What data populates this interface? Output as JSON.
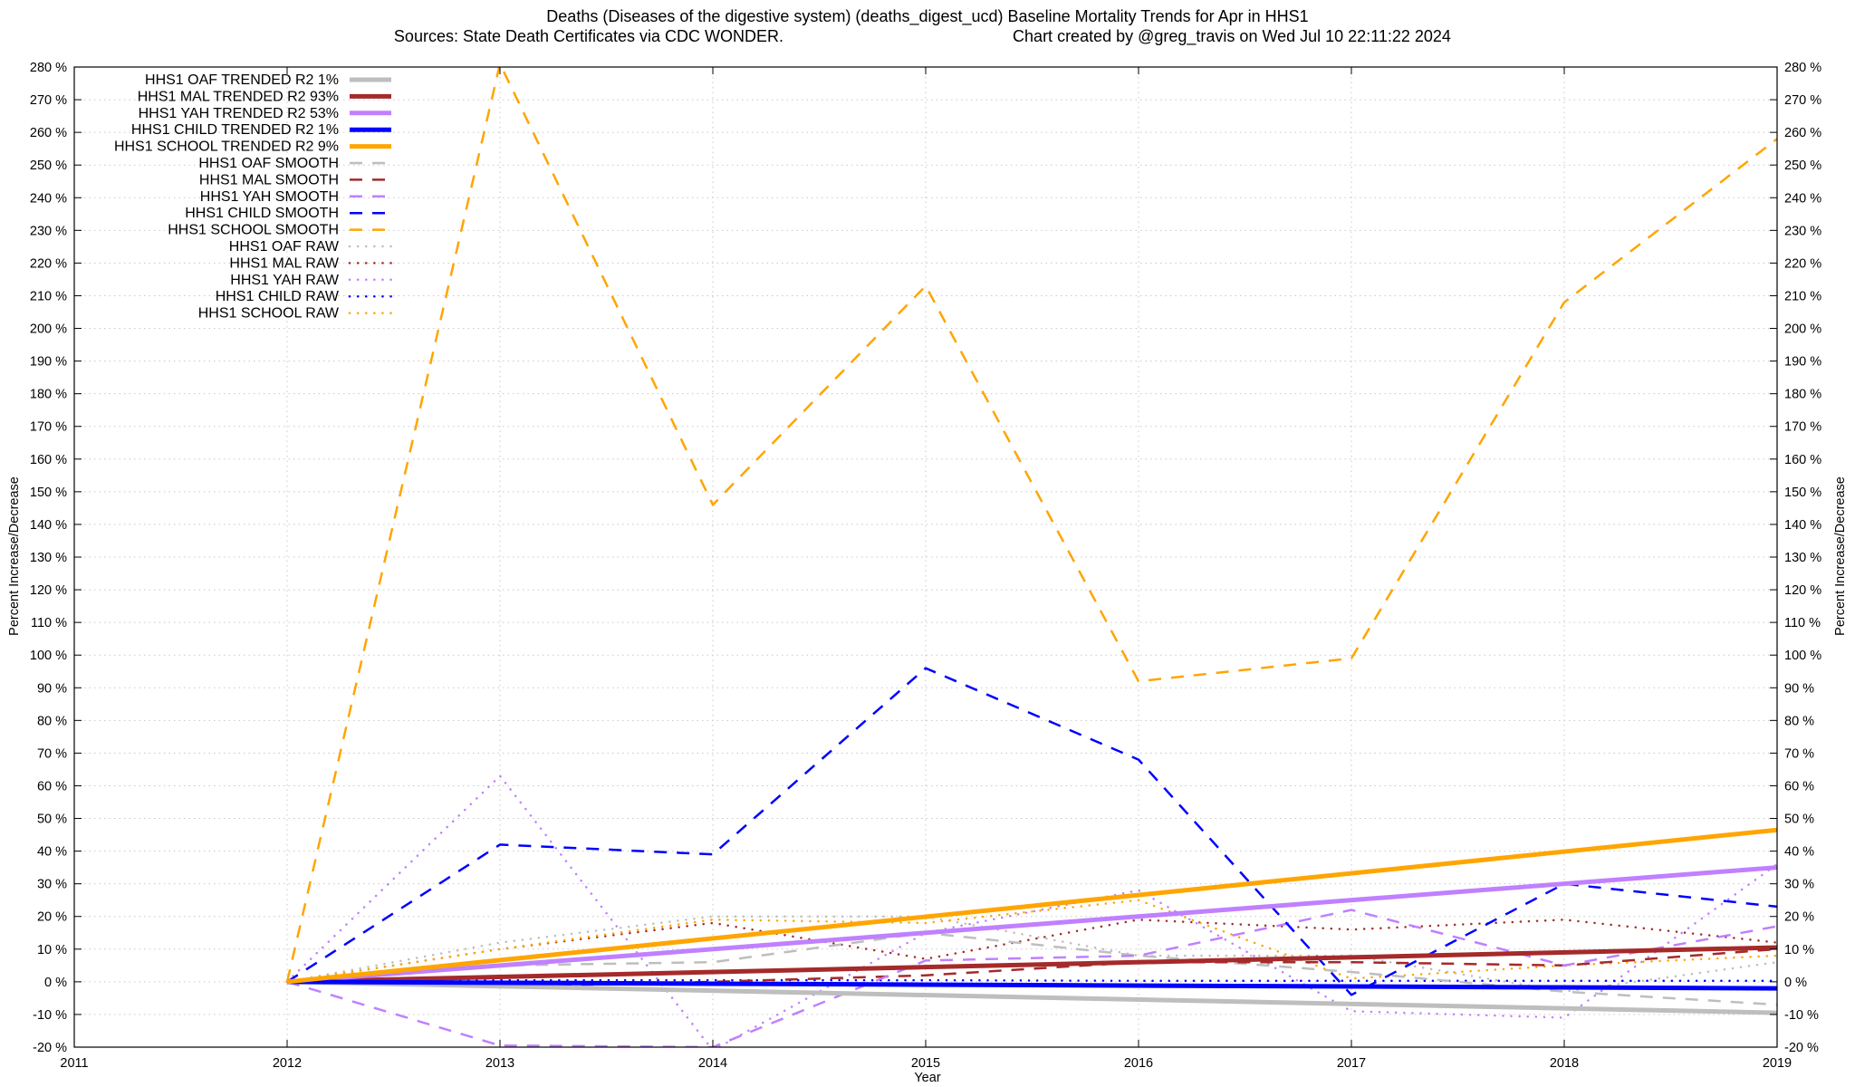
{
  "chart_data": {
    "type": "line",
    "title": "Deaths (Diseases of the digestive system) (deaths_digest_ucd)  Baseline Mortality Trends for Apr in HHS1",
    "subtitle_left": "Sources: State Death Certificates via CDC WONDER.",
    "subtitle_right": "Chart created by @greg_travis on Wed Jul 10 22:11:22 2024",
    "xlabel": "Year",
    "ylabel": "Percent Increase/Decrease",
    "y2label": "Percent Increase/Decrease",
    "xlim": [
      2011,
      2019
    ],
    "ylim": [
      -20,
      280
    ],
    "x_ticks": [
      "2011",
      "2012",
      "2013",
      "2014",
      "2015",
      "2016",
      "2017",
      "2018",
      "2019"
    ],
    "y_ticks": [
      "-20 %",
      "-10 %",
      "0 %",
      "10 %",
      "20 %",
      "30 %",
      "40 %",
      "50 %",
      "60 %",
      "70 %",
      "80 %",
      "90 %",
      "100 %",
      "110 %",
      "120 %",
      "130 %",
      "140 %",
      "150 %",
      "160 %",
      "170 %",
      "180 %",
      "190 %",
      "200 %",
      "210 %",
      "220 %",
      "230 %",
      "240 %",
      "250 %",
      "260 %",
      "270 %",
      "280 %"
    ],
    "grid": true,
    "legend_position": "top-left",
    "series": [
      {
        "name": "HHS1 OAF TRENDED R2  1%",
        "style": "solid",
        "color": "#bebebe",
        "x": [
          2012,
          2019
        ],
        "values": [
          0,
          -9.5
        ]
      },
      {
        "name": "HHS1 MAL TRENDED R2  93%",
        "style": "solid",
        "color": "#a52a2a",
        "x": [
          2012,
          2019
        ],
        "values": [
          0,
          10.5
        ]
      },
      {
        "name": "HHS1 YAH TRENDED R2  53%",
        "style": "solid",
        "color": "#c080ff",
        "x": [
          2012,
          2019
        ],
        "values": [
          0,
          35
        ]
      },
      {
        "name": "HHS1 CHILD TRENDED R2  1%",
        "style": "solid",
        "color": "#0000ff",
        "x": [
          2012,
          2019
        ],
        "values": [
          0,
          -2
        ]
      },
      {
        "name": "HHS1 SCHOOL TRENDED R2  9%",
        "style": "solid",
        "color": "#ffa500",
        "x": [
          2012,
          2019
        ],
        "values": [
          0,
          46.5
        ]
      },
      {
        "name": "HHS1 OAF SMOOTH",
        "style": "dashed",
        "color": "#bebebe",
        "x": [
          2012,
          2013,
          2014,
          2015,
          2016,
          2017,
          2018,
          2019
        ],
        "values": [
          0,
          5,
          6,
          15,
          8,
          3,
          -3,
          -7
        ]
      },
      {
        "name": "HHS1 MAL SMOOTH",
        "style": "dashed",
        "color": "#a52a2a",
        "x": [
          2012,
          2013,
          2014,
          2015,
          2016,
          2017,
          2018,
          2019
        ],
        "values": [
          0,
          -1.5,
          0,
          2,
          6,
          6,
          5,
          10
        ]
      },
      {
        "name": "HHS1 YAH SMOOTH",
        "style": "dashed",
        "color": "#c080ff",
        "x": [
          2012,
          2013,
          2014,
          2015,
          2016,
          2017,
          2018,
          2019
        ],
        "values": [
          0,
          -19.5,
          -20,
          6.5,
          8,
          22,
          5,
          17
        ]
      },
      {
        "name": "HHS1 CHILD SMOOTH",
        "style": "dashed",
        "color": "#0000ff",
        "x": [
          2012,
          2013,
          2014,
          2015,
          2016,
          2017,
          2018,
          2019
        ],
        "values": [
          0,
          42,
          39,
          96,
          68,
          -4,
          30,
          23
        ]
      },
      {
        "name": "HHS1 SCHOOL SMOOTH",
        "style": "dashed",
        "color": "#ffa500",
        "x": [
          2012,
          2013,
          2014,
          2015,
          2016,
          2017,
          2018,
          2019
        ],
        "values": [
          0,
          281,
          146,
          213,
          92,
          99,
          208,
          258
        ]
      },
      {
        "name": "HHS1 OAF RAW",
        "style": "dotted",
        "color": "#bebebe",
        "x": [
          2012,
          2013,
          2014,
          2015,
          2016,
          2017,
          2018,
          2019
        ],
        "values": [
          0,
          12,
          20,
          20,
          8,
          8,
          -3,
          6
        ]
      },
      {
        "name": "HHS1 MAL RAW",
        "style": "dotted",
        "color": "#a52a2a",
        "x": [
          2012,
          2013,
          2014,
          2015,
          2016,
          2017,
          2018,
          2019
        ],
        "values": [
          0,
          10,
          18,
          7,
          19,
          16,
          19,
          12
        ]
      },
      {
        "name": "HHS1 YAH RAW",
        "style": "dotted",
        "color": "#c080ff",
        "x": [
          2012,
          2013,
          2014,
          2015,
          2016,
          2017,
          2018,
          2019
        ],
        "values": [
          0,
          63,
          -21,
          15,
          28,
          -9,
          -11,
          36
        ]
      },
      {
        "name": "HHS1 CHILD RAW",
        "style": "dotted",
        "color": "#0000ff",
        "x": [
          2012,
          2013,
          2014,
          2015,
          2016,
          2017,
          2018,
          2019
        ],
        "values": [
          0,
          0.5,
          0.5,
          0.5,
          0.3,
          0.3,
          0.3,
          0.3
        ]
      },
      {
        "name": "HHS1 SCHOOL RAW",
        "style": "dotted",
        "color": "#ffa500",
        "x": [
          2012,
          2013,
          2014,
          2015,
          2016,
          2017,
          2018,
          2019
        ],
        "values": [
          0,
          10,
          19,
          18,
          25,
          1,
          5,
          8
        ]
      }
    ]
  }
}
